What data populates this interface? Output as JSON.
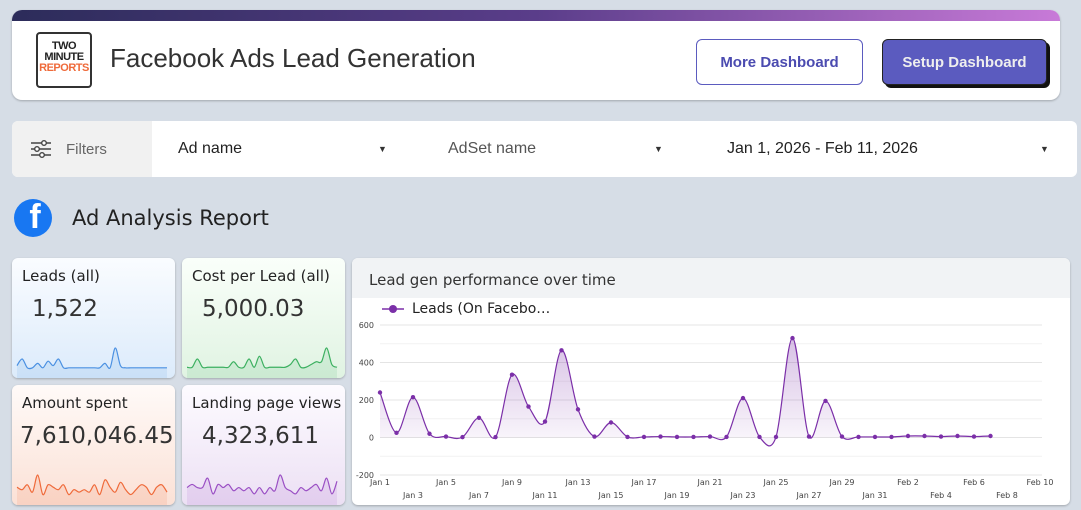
{
  "header": {
    "logo": [
      "TWO",
      "MINUTE",
      "REPORTS"
    ],
    "title": "Facebook Ads Lead Generation",
    "more_button": "More Dashboard",
    "setup_button": "Setup Dashboard"
  },
  "filters": {
    "label": "Filters",
    "ad_name": "Ad name",
    "adset_name": "AdSet name",
    "date_range": "Jan 1, 2026 - Feb 11, 2026"
  },
  "section": {
    "title": "Ad Analysis Report",
    "icon": "facebook-icon"
  },
  "kpis": [
    {
      "label": "Leads (all)",
      "value": "1,522",
      "color": "#4a90e2",
      "spark": [
        2,
        5,
        1,
        1,
        3,
        1,
        4,
        2,
        5,
        1,
        1,
        1,
        1,
        1,
        1,
        1,
        1,
        3,
        1,
        10,
        2,
        1,
        1,
        1,
        1,
        1,
        1,
        1,
        1,
        1
      ]
    },
    {
      "label": "Cost per Lead (all)",
      "value": "5,000.03",
      "color": "#3cb060",
      "spark": [
        1,
        1,
        4,
        1,
        1,
        1,
        1,
        1,
        1,
        3,
        1,
        1,
        4,
        1,
        5,
        1,
        1,
        1,
        1,
        1,
        2,
        4,
        1,
        1,
        2,
        3,
        3,
        8,
        2,
        1
      ]
    },
    {
      "label": "Amount spent",
      "value": "7,610,046.45",
      "color": "#ef6a3a",
      "spark": [
        4,
        3,
        5,
        2,
        9,
        1,
        5,
        4,
        3,
        5,
        1,
        3,
        2,
        3,
        2,
        5,
        1,
        7,
        4,
        2,
        6,
        3,
        1,
        3,
        5,
        4,
        1,
        4,
        5,
        2
      ]
    },
    {
      "label": "Landing page views",
      "value": "4,323,611",
      "color": "#9a4fc4",
      "spark": [
        3,
        4,
        3,
        3,
        6,
        1,
        4,
        3,
        4,
        2,
        3,
        2,
        3,
        1,
        3,
        1,
        3,
        2,
        7,
        3,
        2,
        1,
        3,
        2,
        3,
        4,
        2,
        6,
        1,
        5
      ]
    }
  ],
  "colors": {
    "series": "#7b2fa8"
  },
  "chart_data": {
    "type": "area",
    "title": "Lead gen performance over time",
    "series": [
      {
        "name": "Leads (On Facebo…",
        "values": [
          240,
          25,
          215,
          20,
          5,
          2,
          105,
          2,
          335,
          165,
          85,
          465,
          150,
          5,
          80,
          3,
          3,
          5,
          3,
          3,
          5,
          3,
          210,
          3,
          3,
          530,
          5,
          195,
          5,
          3,
          3,
          3,
          8,
          8,
          5,
          8,
          5,
          8
        ]
      }
    ],
    "x_start": "Jan 1",
    "ylim": [
      -200,
      600
    ],
    "yticks": [
      "600",
      "400",
      "200",
      "0",
      "-200"
    ],
    "xticks_top": [
      "Jan 1",
      "Jan 5",
      "Jan 9",
      "Jan 13",
      "Jan 17",
      "Jan 21",
      "Jan 25",
      "Jan 29",
      "Feb 2",
      "Feb 6",
      "Feb 10"
    ],
    "xticks_bottom": [
      "Jan 3",
      "Jan 7",
      "Jan 11",
      "Jan 15",
      "Jan 19",
      "Jan 23",
      "Jan 27",
      "Jan 31",
      "Feb 4",
      "Feb 8"
    ],
    "grid": true,
    "legend": "top-left"
  }
}
